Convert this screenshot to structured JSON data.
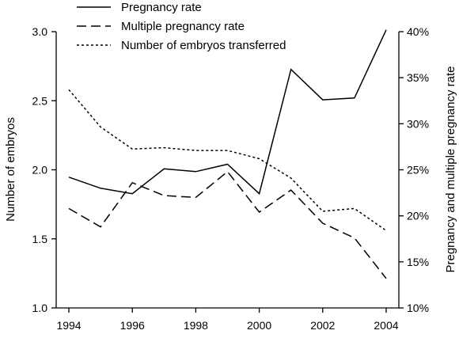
{
  "chart_data": {
    "type": "line",
    "x": [
      1994,
      1995,
      1996,
      1997,
      1998,
      1999,
      2000,
      2001,
      2002,
      2003,
      2004
    ],
    "xlim": [
      1993.6,
      2004.4
    ],
    "xticks": [
      1994,
      1996,
      1998,
      2000,
      2002,
      2004
    ],
    "left_axis": {
      "label": "Number of embryos",
      "lim": [
        1.0,
        3.0
      ],
      "ticks": [
        "1.0",
        "1.5",
        "2.0",
        "2.5",
        "3.0"
      ]
    },
    "right_axis": {
      "label": "Pregnancy and multiple pregnancy rate",
      "lim": [
        10,
        40
      ],
      "ticks": [
        "10%",
        "15%",
        "20%",
        "25%",
        "30%",
        "35%",
        "40%"
      ]
    },
    "series": [
      {
        "name": "Pregnancy rate",
        "axis": "right",
        "style": "solid",
        "values": [
          24.2,
          23.0,
          22.4,
          25.1,
          24.8,
          25.6,
          22.4,
          35.9,
          32.6,
          32.8,
          40.2
        ]
      },
      {
        "name": "Multiple pregnancy rate",
        "axis": "right",
        "style": "dashed",
        "values": [
          20.8,
          18.8,
          23.6,
          22.2,
          22.0,
          24.8,
          20.4,
          22.8,
          19.2,
          17.6,
          13.2
        ]
      },
      {
        "name": "Number of embryos transferred",
        "axis": "left",
        "style": "dotted",
        "values": [
          2.58,
          2.31,
          2.15,
          2.16,
          2.14,
          2.14,
          2.08,
          1.94,
          1.7,
          1.72,
          1.56
        ]
      }
    ],
    "legend_position": "top-left",
    "grid": false,
    "line_color": "#000000"
  }
}
